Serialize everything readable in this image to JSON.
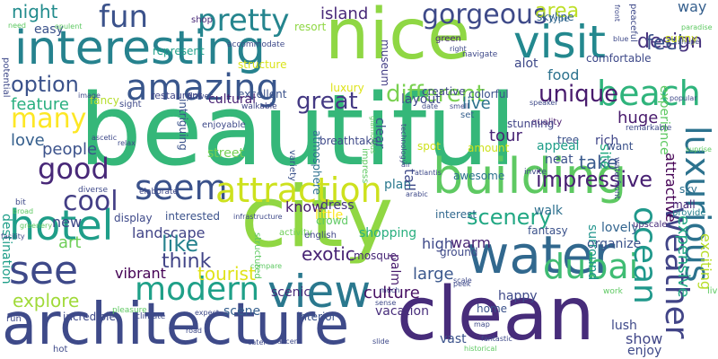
{
  "words": [
    {
      "text": "beautiful",
      "color": "#35b779"
    },
    {
      "text": "city",
      "color": "#90d743"
    },
    {
      "text": "nice",
      "color": "#8fd744"
    },
    {
      "text": "clean",
      "color": "#472c7a"
    },
    {
      "text": "architecture",
      "color": "#3e4a89"
    },
    {
      "text": "water",
      "color": "#31688e"
    },
    {
      "text": "interesting",
      "color": "#26828e"
    },
    {
      "text": "building",
      "color": "#5ec962"
    },
    {
      "text": "view",
      "color": "#2a788e"
    },
    {
      "text": "visit",
      "color": "#23888e"
    },
    {
      "text": "amazing",
      "color": "#39568c"
    },
    {
      "text": "hotel",
      "color": "#1f9e89"
    },
    {
      "text": "seem",
      "color": "#3b528b"
    },
    {
      "text": "attraction",
      "color": "#cde11d"
    },
    {
      "text": "see",
      "color": "#3e4989"
    },
    {
      "text": "beach",
      "color": "#2fb47c"
    },
    {
      "text": "modern",
      "color": "#1fa088"
    },
    {
      "text": "dubai",
      "color": "#3fbc73"
    },
    {
      "text": "luxurious",
      "color": "#2c728e"
    },
    {
      "text": "ocean",
      "color": "#1f988b"
    },
    {
      "text": "weather",
      "color": "#414487"
    },
    {
      "text": "fun",
      "color": "#3b528b"
    },
    {
      "text": "pretty",
      "color": "#25858e"
    },
    {
      "text": "many",
      "color": "#fde725"
    },
    {
      "text": "good",
      "color": "#482878"
    },
    {
      "text": "cool",
      "color": "#433e85"
    },
    {
      "text": "gorgeous",
      "color": "#3e4a89"
    },
    {
      "text": "great",
      "color": "#443983"
    },
    {
      "text": "different",
      "color": "#7ad151"
    },
    {
      "text": "unique",
      "color": "#481b6d"
    },
    {
      "text": "scenery",
      "color": "#22a884"
    },
    {
      "text": "option",
      "color": "#3b528b"
    },
    {
      "text": "expensive",
      "color": "#22a884"
    },
    {
      "text": "explore",
      "color": "#a0da39"
    },
    {
      "text": "culture",
      "color": "#471063"
    },
    {
      "text": "tourist",
      "color": "#dfe318"
    },
    {
      "text": "impressive",
      "color": "#482173"
    },
    {
      "text": "exotic",
      "color": "#482475"
    },
    {
      "text": "landscape",
      "color": "#414487"
    },
    {
      "text": "like",
      "color": "#26828e"
    },
    {
      "text": "think",
      "color": "#414487"
    },
    {
      "text": "art",
      "color": "#6ece58"
    },
    {
      "text": "vibrant",
      "color": "#440154"
    },
    {
      "text": "night",
      "color": "#228c8d"
    },
    {
      "text": "island",
      "color": "#482878"
    },
    {
      "text": "area",
      "color": "#bddf26"
    },
    {
      "text": "design",
      "color": "#46337e"
    },
    {
      "text": "feel",
      "color": "#3b528b"
    },
    {
      "text": "way",
      "color": "#355f8d"
    },
    {
      "text": "food",
      "color": "#2c728e"
    },
    {
      "text": "live",
      "color": "#2c728e"
    },
    {
      "text": "tour",
      "color": "#482475"
    },
    {
      "text": "take",
      "color": "#38598c"
    },
    {
      "text": "huge",
      "color": "#481a6c"
    },
    {
      "text": "feature",
      "color": "#29af7f"
    },
    {
      "text": "love",
      "color": "#355f8d"
    },
    {
      "text": "people",
      "color": "#3b528b"
    },
    {
      "text": "know",
      "color": "#481b6d"
    },
    {
      "text": "high",
      "color": "#3e4989"
    },
    {
      "text": "warm",
      "color": "#482475"
    },
    {
      "text": "large",
      "color": "#39568c"
    },
    {
      "text": "scene",
      "color": "#355f8d"
    },
    {
      "text": "vacation",
      "color": "#472d7b"
    },
    {
      "text": "vast",
      "color": "#3b528b"
    },
    {
      "text": "happy",
      "color": "#3e4989"
    },
    {
      "text": "show",
      "color": "#404688"
    },
    {
      "text": "enjoy",
      "color": "#3e4989"
    },
    {
      "text": "lush",
      "color": "#3e4989"
    },
    {
      "text": "new",
      "color": "#3e4a89"
    },
    {
      "text": "shopping",
      "color": "#29af7f"
    },
    {
      "text": "interest",
      "color": "#31688e"
    },
    {
      "text": "walk",
      "color": "#2d708e"
    },
    {
      "text": "plan",
      "color": "#2a788e"
    },
    {
      "text": "lovely",
      "color": "#32648e"
    },
    {
      "text": "organize",
      "color": "#3b528b"
    },
    {
      "text": "scenic",
      "color": "#482878"
    },
    {
      "text": "dress",
      "color": "#46327e"
    },
    {
      "text": "attractive",
      "color": "#440154"
    },
    {
      "text": "exciting",
      "color": "#b8de29"
    },
    {
      "text": "experience",
      "color": "#5ec962"
    },
    {
      "text": "surround",
      "color": "#1f948c"
    },
    {
      "text": "site",
      "color": "#25ab82"
    },
    {
      "text": "destination",
      "color": "#1f9e89"
    },
    {
      "text": "comfortable",
      "color": "#3e4989"
    },
    {
      "text": "alot",
      "color": "#3e4989"
    },
    {
      "text": "colorful",
      "color": "#3b528b"
    },
    {
      "text": "creative",
      "color": "#404688"
    },
    {
      "text": "layout",
      "color": "#3e4989"
    },
    {
      "text": "luxury",
      "color": "#dde318"
    },
    {
      "text": "museum",
      "color": "#433e85"
    },
    {
      "text": "green",
      "color": "#482878"
    },
    {
      "text": "excellent",
      "color": "#3b528b"
    },
    {
      "text": "restaurant",
      "color": "#404688"
    },
    {
      "text": "fancy",
      "color": "#b5de2b"
    },
    {
      "text": "easy",
      "color": "#3b528b"
    },
    {
      "text": "represent",
      "color": "#1f9e89"
    },
    {
      "text": "structure",
      "color": "#dae319"
    },
    {
      "text": "skyline",
      "color": "#33638d"
    },
    {
      "text": "shop",
      "color": "#482878"
    },
    {
      "text": "type",
      "color": "#31688e"
    },
    {
      "text": "sunny",
      "color": "#cde11d"
    },
    {
      "text": "peaceful",
      "color": "#3e4989"
    },
    {
      "text": "cultural",
      "color": "#482173"
    },
    {
      "text": "intriguing",
      "color": "#3b528b"
    },
    {
      "text": "atmosphere",
      "color": "#2d708e"
    },
    {
      "text": "street",
      "color": "#75d054"
    },
    {
      "text": "tall",
      "color": "#3e4989"
    },
    {
      "text": "awesome",
      "color": "#2c728e"
    },
    {
      "text": "mosque",
      "color": "#482878"
    },
    {
      "text": "home",
      "color": "#3b528b"
    },
    {
      "text": "interior",
      "color": "#3b528b"
    },
    {
      "text": "ground",
      "color": "#3e4989"
    },
    {
      "text": "fantasy",
      "color": "#3b528b"
    },
    {
      "text": "palm",
      "color": "#481b6d"
    },
    {
      "text": "neat",
      "color": "#3b528b"
    },
    {
      "text": "quality",
      "color": "#481b6d"
    },
    {
      "text": "stunning",
      "color": "#414487"
    },
    {
      "text": "spot",
      "color": "#cde11d"
    },
    {
      "text": "rich",
      "color": "#404688"
    },
    {
      "text": "tree",
      "color": "#3b528b"
    },
    {
      "text": "want",
      "color": "#3b528b"
    },
    {
      "text": "appeal",
      "color": "#1f9e89"
    },
    {
      "text": "mall",
      "color": "#482878"
    },
    {
      "text": "sky",
      "color": "#2d708e"
    },
    {
      "text": "upscale",
      "color": "#472c7a"
    },
    {
      "text": "provide",
      "color": "#26828e"
    },
    {
      "text": "incredible",
      "color": "#3e4989"
    },
    {
      "text": "little",
      "color": "#fde725"
    },
    {
      "text": "display",
      "color": "#3e4989"
    },
    {
      "text": "interested",
      "color": "#3b528b"
    },
    {
      "text": "crowd",
      "color": "#5ec962"
    },
    {
      "text": "activity",
      "color": "#6ece58"
    },
    {
      "text": "english",
      "color": "#404688"
    },
    {
      "text": "variety",
      "color": "#3b528b"
    },
    {
      "text": "structured",
      "color": "#5ec962"
    },
    {
      "text": "clear",
      "color": "#3b528b"
    },
    {
      "text": "breathtake",
      "color": "#3e4989"
    },
    {
      "text": "enjoyable",
      "color": "#3e4989"
    },
    {
      "text": "amount",
      "color": "#cde11d"
    },
    {
      "text": "impress",
      "color": "#5ec962"
    },
    {
      "text": "set",
      "color": "#355f8d"
    },
    {
      "text": "sight",
      "color": "#3e4989"
    },
    {
      "text": "resort",
      "color": "#8fd744"
    },
    {
      "text": "potential",
      "color": "#3e4989"
    },
    {
      "text": "accommodate",
      "color": "#3e4989"
    },
    {
      "text": "flower",
      "color": "#3e4989"
    },
    {
      "text": "walkable",
      "color": "#404688"
    },
    {
      "text": "navigate",
      "color": "#3e4989"
    },
    {
      "text": "need",
      "color": "#5ec962"
    },
    {
      "text": "opulent",
      "color": "#5ec962"
    },
    {
      "text": "glamorous",
      "color": "#5ec962"
    },
    {
      "text": "technology",
      "color": "#3e4989"
    },
    {
      "text": "smell",
      "color": "#3e4989"
    },
    {
      "text": "date",
      "color": "#3e4989"
    },
    {
      "text": "speaker",
      "color": "#3e4989"
    },
    {
      "text": "popular",
      "color": "#3e4989"
    },
    {
      "text": "remarkable",
      "color": "#3e4989"
    },
    {
      "text": "waterfront",
      "color": "#3e4989"
    },
    {
      "text": "invite",
      "color": "#3e4989"
    },
    {
      "text": "atlantis",
      "color": "#3e4989"
    },
    {
      "text": "air",
      "color": "#3e4989"
    },
    {
      "text": "arabic",
      "color": "#3e4989"
    },
    {
      "text": "suprise",
      "color": "#5ec962"
    },
    {
      "text": "paradise",
      "color": "#5ec962"
    },
    {
      "text": "shape",
      "color": "#3e4989"
    },
    {
      "text": "blue",
      "color": "#3e4989"
    },
    {
      "text": "image",
      "color": "#3e4989"
    },
    {
      "text": "relax",
      "color": "#3e4989"
    },
    {
      "text": "ascetic",
      "color": "#3e4989"
    },
    {
      "text": "elaborate",
      "color": "#3e4989"
    },
    {
      "text": "diverse",
      "color": "#3e4989"
    },
    {
      "text": "facility",
      "color": "#3e4989"
    },
    {
      "text": "bit",
      "color": "#3e4989"
    },
    {
      "text": "broad",
      "color": "#5ec962"
    },
    {
      "text": "greenery",
      "color": "#5ec962"
    },
    {
      "text": "infrastructure",
      "color": "#3e4989"
    },
    {
      "text": "compare",
      "color": "#5ec962"
    },
    {
      "text": "sense",
      "color": "#3e4989"
    },
    {
      "text": "scale",
      "color": "#3e4989"
    },
    {
      "text": "peek",
      "color": "#3e4989"
    },
    {
      "text": "much",
      "color": "#3e4989"
    },
    {
      "text": "fantastic",
      "color": "#3e4989"
    },
    {
      "text": "historical",
      "color": "#5ec962"
    },
    {
      "text": "map",
      "color": "#3e4989"
    },
    {
      "text": "cater",
      "color": "#3e4989"
    },
    {
      "text": "accent",
      "color": "#3e4989"
    },
    {
      "text": "slide",
      "color": "#3e4989"
    },
    {
      "text": "expect",
      "color": "#3e4989"
    },
    {
      "text": "climate",
      "color": "#3e4989"
    },
    {
      "text": "pleasure",
      "color": "#5ec962"
    },
    {
      "text": "road",
      "color": "#3e4989"
    },
    {
      "text": "hot",
      "color": "#3e4989"
    },
    {
      "text": "run",
      "color": "#3e4989"
    },
    {
      "text": "work",
      "color": "#5ec962"
    },
    {
      "text": "lively",
      "color": "#5ec962"
    },
    {
      "text": "front",
      "color": "#3e4989"
    },
    {
      "text": "right",
      "color": "#3e4989"
    }
  ]
}
